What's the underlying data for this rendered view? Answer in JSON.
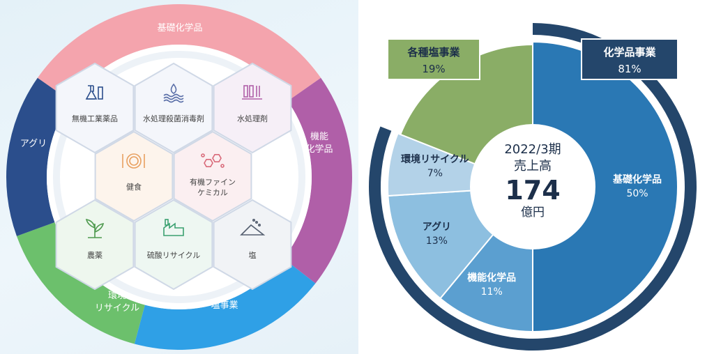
{
  "colors": {
    "ring_pink": "#f4a4ad",
    "ring_purple": "#b05fa8",
    "ring_blue": "#2fa0e6",
    "ring_green": "#6cc06c",
    "ring_navy": "#2b4e8c",
    "chem_dark": "#24466b",
    "salt_green": "#8aad66",
    "basic_chem": "#2a78b4",
    "func_chem": "#5b9fd0",
    "agri": "#8dbfe0",
    "env": "#b3d2e8"
  },
  "business_wheel": {
    "segments": [
      {
        "label": "基礎化学品",
        "color": "#f4a4ad"
      },
      {
        "label": "機能化学品",
        "color": "#b05fa8"
      },
      {
        "label": "塩事業",
        "color": "#2fa0e6"
      },
      {
        "label": "環境リサイクル",
        "color": "#6cc06c"
      },
      {
        "label": "アグリ",
        "color": "#2b4e8c"
      }
    ],
    "hexagons": [
      {
        "label": "無機工業薬品",
        "icon": "flask-icon",
        "color": "#2b4e8c"
      },
      {
        "label": "水処理殺菌消毒剤",
        "icon": "water-drop-icon",
        "color": "#5a6fa8"
      },
      {
        "label": "水処理剤",
        "icon": "lab-equipment-icon",
        "color": "#b05fa8"
      },
      {
        "label": "健食",
        "icon": "meal-icon",
        "color": "#e8a060"
      },
      {
        "label": "有機ファイン\nケミカル",
        "icon": "molecule-icon",
        "color": "#d96a7a"
      },
      {
        "label": "農薬",
        "icon": "sprout-icon",
        "color": "#4f9a4f"
      },
      {
        "label": "硫酸リサイクル",
        "icon": "factory-icon",
        "color": "#3aa070"
      },
      {
        "label": "塩",
        "icon": "salt-pile-icon",
        "color": "#555f70"
      }
    ]
  },
  "chart_data": {
    "type": "pie",
    "center": {
      "period": "2022/3期",
      "caption": "売上高",
      "value": "174",
      "unit": "億円"
    },
    "outer_ring": [
      {
        "name": "化学品事業",
        "value": 81,
        "label": "81%",
        "color": "#24466b"
      },
      {
        "name": "各種塩事業",
        "value": 19,
        "label": "19%",
        "color": "#8aad66"
      }
    ],
    "inner_pie": [
      {
        "name": "基礎化学品",
        "value": 50,
        "label": "50%",
        "color": "#2a78b4"
      },
      {
        "name": "機能化学品",
        "value": 11,
        "label": "11%",
        "color": "#5b9fd0"
      },
      {
        "name": "アグリ",
        "value": 13,
        "label": "13%",
        "color": "#8dbfe0"
      },
      {
        "name": "環境リサイクル",
        "value": 7,
        "label": "7%",
        "color": "#b3d2e8"
      },
      {
        "name": "各種塩事業",
        "value": 19,
        "label": "19%",
        "color": "#8aad66"
      }
    ]
  }
}
